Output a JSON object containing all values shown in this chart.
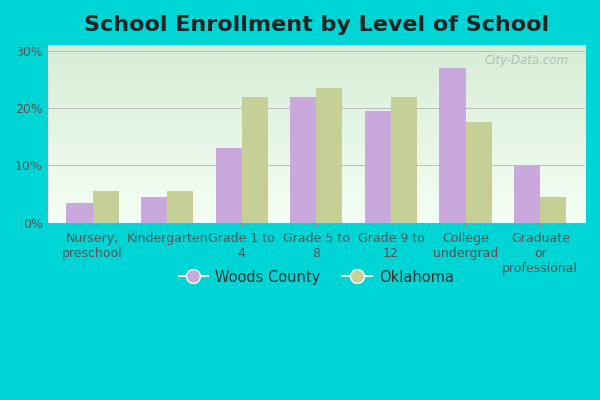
{
  "title": "School Enrollment by Level of School",
  "categories": [
    "Nursery,\npreschool",
    "Kindergarten",
    "Grade 1 to\n4",
    "Grade 5 to\n8",
    "Grade 9 to\n12",
    "College\nundergrad",
    "Graduate\nor\nprofessional"
  ],
  "woods_county": [
    3.5,
    4.5,
    13.0,
    22.0,
    19.5,
    27.0,
    10.0
  ],
  "oklahoma": [
    5.5,
    5.5,
    22.0,
    23.5,
    22.0,
    17.5,
    4.5
  ],
  "woods_color": "#c9a8dd",
  "oklahoma_color": "#c5cf96",
  "ylabel_ticks": [
    "0%",
    "10%",
    "20%",
    "30%"
  ],
  "yticks": [
    0,
    10,
    20,
    30
  ],
  "ylim": [
    0,
    31
  ],
  "legend_labels": [
    "Woods County",
    "Oklahoma"
  ],
  "outer_bg_color": "#00d5d5",
  "plot_bg_top": "#d6edd6",
  "plot_bg_bottom": "#f8fff8",
  "watermark": "City-Data.com",
  "bar_width": 0.35,
  "title_fontsize": 16,
  "tick_fontsize": 9,
  "legend_fontsize": 10.5
}
